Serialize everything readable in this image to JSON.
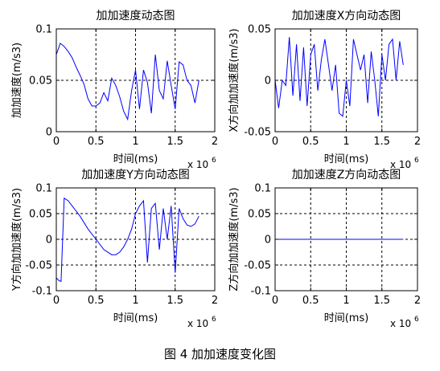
{
  "figure": {
    "caption": "图 4  加加速度变化图"
  },
  "chart_data": [
    {
      "type": "line",
      "title": "加加速度动态图",
      "xlabel": "时间(ms)",
      "ylabel": "加加速度(m/s3)",
      "x_exponent_label": "x 10",
      "x_exponent_power": "6",
      "xlim": [
        0,
        2000000
      ],
      "ylim": [
        0,
        0.1
      ],
      "xticks": [
        0,
        500000,
        1000000,
        1500000,
        2000000
      ],
      "xtick_labels": [
        "0",
        "0.5",
        "1",
        "1.5",
        "2"
      ],
      "yticks": [
        0,
        0.05,
        0.1
      ],
      "ytick_labels": [
        "0",
        "0.05",
        "0.1"
      ],
      "grid": true,
      "line_color": "#0000ff",
      "x": [
        0,
        50000,
        100000,
        150000,
        200000,
        250000,
        300000,
        350000,
        400000,
        450000,
        500000,
        550000,
        600000,
        650000,
        700000,
        750000,
        800000,
        850000,
        900000,
        950000,
        1000000,
        1050000,
        1100000,
        1150000,
        1200000,
        1250000,
        1300000,
        1350000,
        1400000,
        1450000,
        1500000,
        1550000,
        1600000,
        1650000,
        1700000,
        1750000,
        1800000
      ],
      "y": [
        0.075,
        0.086,
        0.083,
        0.078,
        0.072,
        0.063,
        0.055,
        0.046,
        0.032,
        0.025,
        0.025,
        0.028,
        0.038,
        0.03,
        0.052,
        0.045,
        0.034,
        0.02,
        0.012,
        0.04,
        0.06,
        0.022,
        0.06,
        0.048,
        0.018,
        0.075,
        0.04,
        0.032,
        0.069,
        0.045,
        0.022,
        0.068,
        0.065,
        0.05,
        0.045,
        0.028,
        0.05
      ]
    },
    {
      "type": "line",
      "title": "加加速度X方向动态图",
      "xlabel": "时间(ms)",
      "ylabel": "X方向加加速度(m/s3)",
      "x_exponent_label": "x 10",
      "x_exponent_power": "6",
      "xlim": [
        0,
        2000000
      ],
      "ylim": [
        -0.05,
        0.05
      ],
      "xticks": [
        0,
        500000,
        1000000,
        1500000,
        2000000
      ],
      "xtick_labels": [
        "0",
        "0.5",
        "1",
        "1.5",
        "2"
      ],
      "yticks": [
        -0.05,
        0,
        0.05
      ],
      "ytick_labels": [
        "-0.05",
        "0",
        "0.05"
      ],
      "grid": true,
      "line_color": "#0000ff",
      "x": [
        0,
        50000,
        100000,
        150000,
        200000,
        250000,
        300000,
        350000,
        400000,
        450000,
        500000,
        550000,
        600000,
        650000,
        700000,
        750000,
        800000,
        850000,
        900000,
        950000,
        1000000,
        1050000,
        1100000,
        1150000,
        1200000,
        1250000,
        1300000,
        1350000,
        1400000,
        1450000,
        1500000,
        1550000,
        1600000,
        1650000,
        1700000,
        1750000,
        1800000
      ],
      "y": [
        0.0,
        -0.027,
        0.0,
        -0.005,
        0.042,
        -0.015,
        0.035,
        -0.02,
        0.032,
        -0.025,
        0.025,
        0.035,
        -0.01,
        0.02,
        0.04,
        0.015,
        -0.01,
        0.015,
        -0.032,
        -0.035,
        0.0,
        -0.025,
        0.04,
        0.025,
        0.01,
        0.025,
        -0.022,
        0.028,
        0.0,
        -0.035,
        0.025,
        0.0,
        0.035,
        0.04,
        0.0,
        0.038,
        0.015
      ]
    },
    {
      "type": "line",
      "title": "加加速度Y方向动态图",
      "xlabel": "时间(ms)",
      "ylabel": "Y方向加加速度(m/s3)",
      "x_exponent_label": "x 10",
      "x_exponent_power": "6",
      "xlim": [
        0,
        2000000
      ],
      "ylim": [
        -0.1,
        0.1
      ],
      "xticks": [
        0,
        500000,
        1000000,
        1500000,
        2000000
      ],
      "xtick_labels": [
        "0",
        "0.5",
        "1",
        "1.5",
        "2"
      ],
      "yticks": [
        -0.1,
        -0.05,
        0,
        0.05,
        0.1
      ],
      "ytick_labels": [
        "-0.1",
        "-0.05",
        "0",
        "0.05",
        "0.1"
      ],
      "grid": true,
      "line_color": "#0000ff",
      "x": [
        0,
        30000,
        60000,
        100000,
        150000,
        200000,
        300000,
        400000,
        500000,
        600000,
        700000,
        750000,
        800000,
        850000,
        900000,
        950000,
        1000000,
        1050000,
        1100000,
        1150000,
        1200000,
        1250000,
        1300000,
        1350000,
        1400000,
        1450000,
        1500000,
        1550000,
        1600000,
        1650000,
        1700000,
        1750000,
        1800000
      ],
      "y": [
        -0.075,
        -0.08,
        -0.082,
        0.08,
        0.075,
        0.065,
        0.045,
        0.02,
        0.0,
        -0.02,
        -0.03,
        -0.03,
        -0.025,
        -0.015,
        0.0,
        0.02,
        0.05,
        0.065,
        0.075,
        -0.045,
        0.06,
        0.07,
        -0.02,
        0.06,
        0.0,
        0.065,
        -0.065,
        0.06,
        0.04,
        0.028,
        0.025,
        0.03,
        0.045
      ]
    },
    {
      "type": "line",
      "title": "加加速度Z方向动态图",
      "xlabel": "时间(ms)",
      "ylabel": "Z方向加加速度(m/s3)",
      "x_exponent_label": "x 10",
      "x_exponent_power": "6",
      "xlim": [
        0,
        2000000
      ],
      "ylim": [
        -0.1,
        0.1
      ],
      "xticks": [
        0,
        500000,
        1000000,
        1500000,
        2000000
      ],
      "xtick_labels": [
        "0",
        "0.5",
        "1",
        "1.5",
        "2"
      ],
      "yticks": [
        -0.1,
        -0.05,
        0,
        0.05,
        0.1
      ],
      "ytick_labels": [
        "-0.1",
        "-0.05",
        "0",
        "0.05",
        "0.1"
      ],
      "grid": true,
      "line_color": "#0000ff",
      "x": [
        0,
        1800000
      ],
      "y": [
        0,
        0
      ]
    }
  ]
}
